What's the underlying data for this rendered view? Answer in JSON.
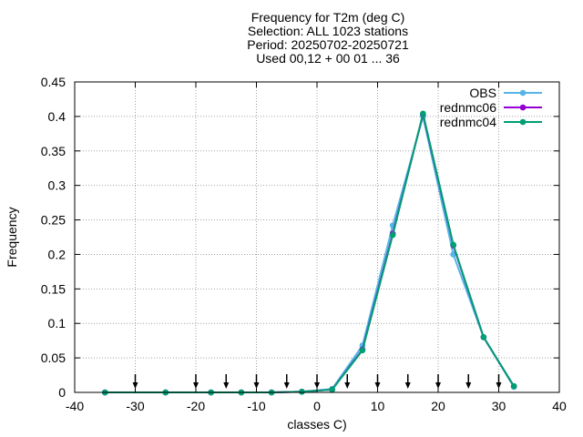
{
  "chart_data": {
    "type": "line",
    "title_lines": [
      "Frequency  for T2m (deg C)",
      "Selection: ALL    1023 stations",
      "Period: 20250702-20250721",
      "Used 00,12 + 00 01 ... 36"
    ],
    "xlabel": "classes C)",
    "ylabel": "Frequency",
    "xlim": [
      -40,
      40
    ],
    "ylim": [
      0,
      0.45
    ],
    "xticks": [
      -40,
      -30,
      -20,
      -10,
      0,
      10,
      20,
      30,
      40
    ],
    "yticks": [
      0,
      0.05,
      0.1,
      0.15,
      0.2,
      0.25,
      0.3,
      0.35,
      0.4,
      0.45
    ],
    "xtick_labels": [
      "-40",
      "-30",
      "-20",
      "-10",
      "0",
      "10",
      "20",
      "30",
      "40"
    ],
    "ytick_labels": [
      "0",
      "0.05",
      "0.1",
      "0.15",
      "0.2",
      "0.25",
      "0.3",
      "0.35",
      "0.4",
      "0.45"
    ],
    "grid": true,
    "legend_position": "top-right",
    "x": [
      -35,
      -25,
      -17.5,
      -12.5,
      -7.5,
      -2.5,
      2.5,
      7.5,
      12.5,
      17.5,
      22.5,
      27.5,
      32.5
    ],
    "series": [
      {
        "name": "OBS",
        "color": "#56b4e9",
        "values": [
          0,
          0,
          0,
          0,
          0,
          0.001,
          0.005,
          0.068,
          0.242,
          0.4,
          0.2,
          0.08,
          0.008
        ]
      },
      {
        "name": "rednmc06",
        "color": "#9400d3",
        "values": [
          0,
          0,
          0,
          0,
          0,
          0.001,
          0.004,
          0.062,
          0.23,
          0.403,
          0.213,
          0.08,
          0.009
        ]
      },
      {
        "name": "rednmc04",
        "color": "#009e73",
        "values": [
          0,
          0,
          0,
          0,
          0,
          0.001,
          0.004,
          0.061,
          0.228,
          0.404,
          0.214,
          0.08,
          0.009
        ]
      }
    ],
    "arrow_markers_x": [
      -30,
      -20,
      -15,
      -10,
      -5,
      0,
      5,
      10,
      15,
      20,
      25,
      30
    ]
  }
}
